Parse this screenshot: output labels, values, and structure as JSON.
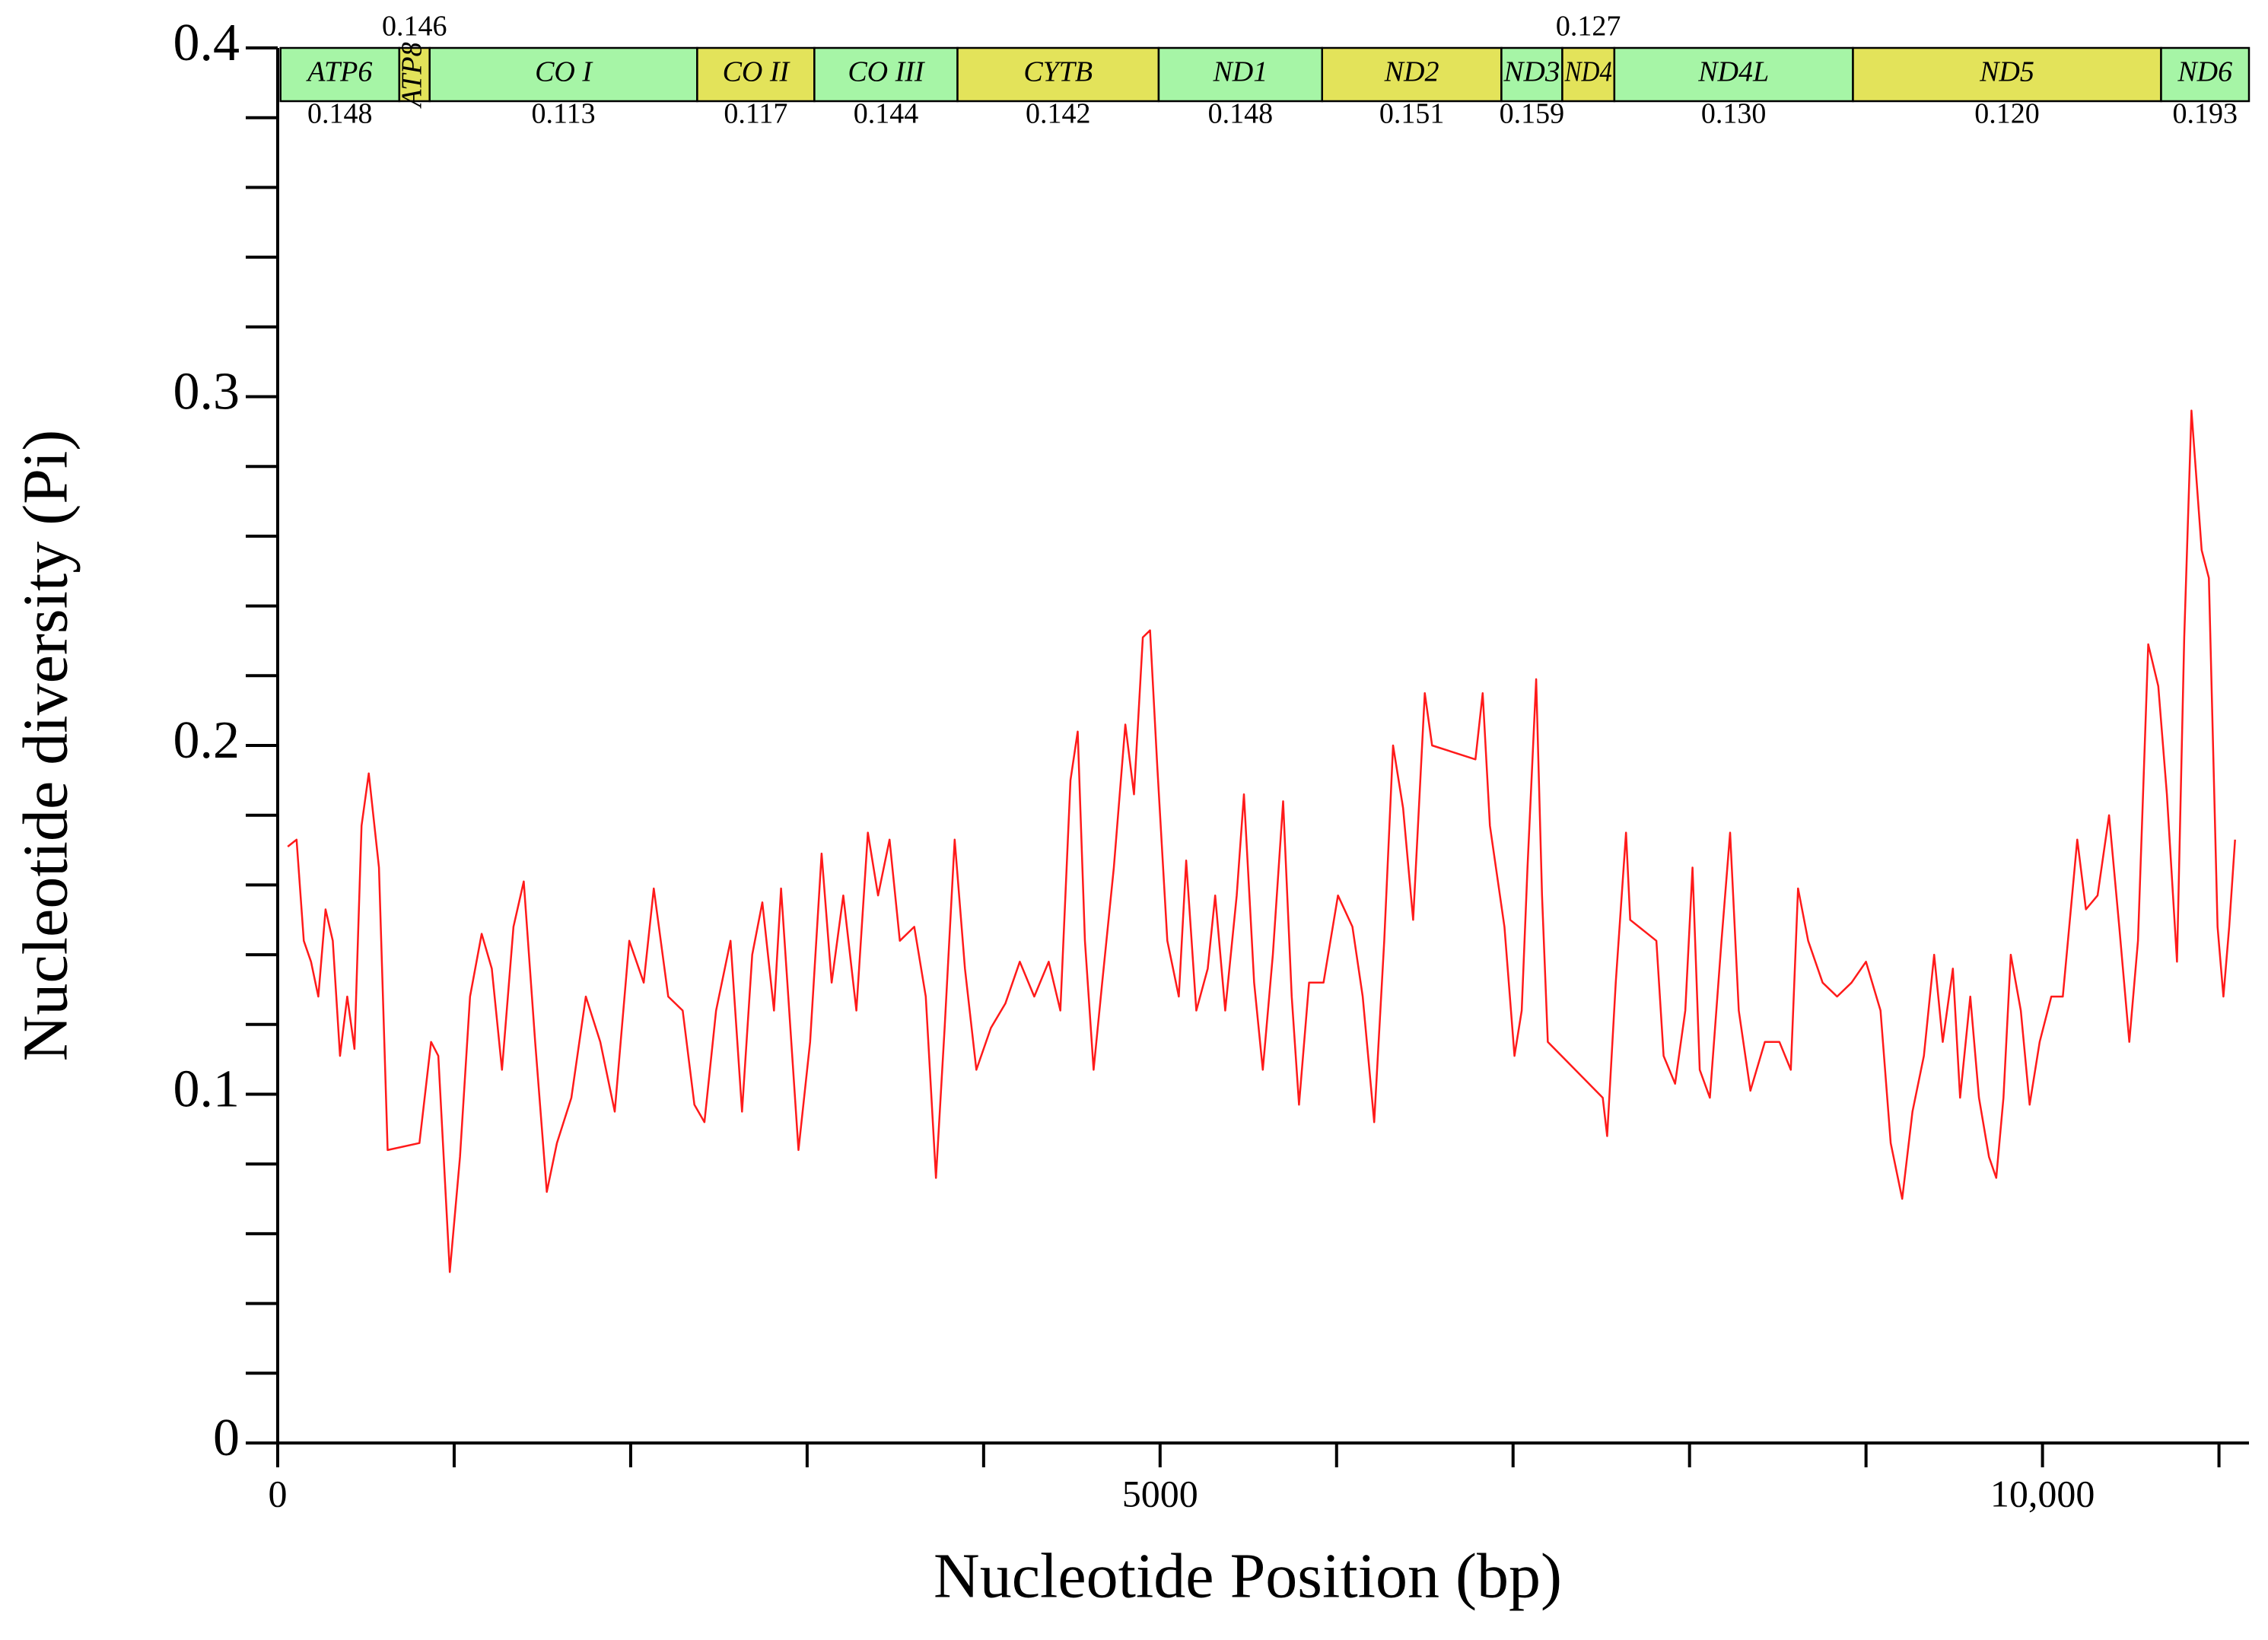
{
  "chart_data": {
    "type": "line",
    "xlabel": "Nucleotide Position (bp)",
    "ylabel": "Nucleotide diversity (Pi)",
    "color": "#ff1a1a",
    "xlim": [
      0,
      11170
    ],
    "ylim": [
      0,
      0.4
    ],
    "xticks": [
      0,
      5000,
      {
        "value": 10000,
        "label": "10,000"
      }
    ],
    "xticks_minor": [
      1000,
      2000,
      3000,
      4000,
      6000,
      7000,
      8000,
      9000,
      11000
    ],
    "yticks": [
      0,
      0.1,
      0.2,
      0.3,
      0.4
    ],
    "yticks_minor": [
      0.02,
      0.04,
      0.06,
      0.08,
      0.12,
      0.14,
      0.16,
      0.18,
      0.22,
      0.24,
      0.26,
      0.28,
      0.32,
      0.34,
      0.36,
      0.38
    ],
    "genes": {
      "names": [
        "ATP6",
        "ATP8",
        "CO I",
        "CO II",
        "CO III",
        "CYTB",
        "ND1",
        "ND2",
        "ND3",
        "ND4",
        "ND4L",
        "ND5",
        "ND6"
      ],
      "starts": [
        16,
        689,
        861,
        2377,
        3041,
        3852,
        4992,
        5918,
        6934,
        7279,
        7574,
        8926,
        10672
      ],
      "ends": [
        689,
        861,
        2377,
        3041,
        3852,
        4992,
        5918,
        6934,
        7279,
        7574,
        8926,
        10672,
        11170
      ],
      "colors": [
        "#a6f5a6",
        "#e3e35a",
        "#a6f5a6",
        "#e3e35a",
        "#a6f5a6",
        "#e3e35a",
        "#a6f5a6",
        "#e3e35a",
        "#a6f5a6",
        "#e3e35a",
        "#a6f5a6",
        "#e3e35a",
        "#a6f5a6"
      ],
      "values": [
        0.148,
        0.146,
        0.113,
        0.117,
        0.144,
        0.142,
        0.148,
        0.151,
        0.159,
        0.127,
        0.13,
        0.12,
        0.193
      ],
      "value_labels": [
        "0.148",
        "0.146",
        "0.113",
        "0.117",
        "0.144",
        "0.142",
        "0.148",
        "0.151",
        "0.159",
        "0.127",
        "0.130",
        "0.120",
        "0.193"
      ],
      "label_rows": [
        "below",
        "above",
        "below",
        "below",
        "below",
        "below",
        "below",
        "below",
        "below",
        "above",
        "below",
        "below",
        "below"
      ]
    },
    "x": [
      57,
      107,
      148,
      189,
      230,
      271,
      312,
      353,
      394,
      435,
      475,
      516,
      574,
      623,
      803,
      869,
      910,
      975,
      1033,
      1090,
      1156,
      1213,
      1271,
      1336,
      1394,
      1459,
      1525,
      1582,
      1664,
      1746,
      1828,
      1910,
      1992,
      2074,
      2131,
      2213,
      2295,
      2361,
      2418,
      2484,
      2566,
      2631,
      2689,
      2746,
      2812,
      2852,
      2893,
      2951,
      3017,
      3082,
      3139,
      3205,
      3279,
      3344,
      3402,
      3467,
      3525,
      3607,
      3672,
      3730,
      3779,
      3836,
      3894,
      3959,
      4041,
      4123,
      4205,
      4287,
      4369,
      4435,
      4492,
      4533,
      4574,
      4623,
      4672,
      4738,
      4803,
      4852,
      4902,
      4943,
      4984,
      5041,
      5106,
      5148,
      5205,
      5270,
      5312,
      5369,
      5434,
      5475,
      5533,
      5582,
      5639,
      5697,
      5746,
      5787,
      5844,
      5926,
      6008,
      6090,
      6148,
      6213,
      6270,
      6320,
      6377,
      6434,
      6500,
      6541,
      6787,
      6828,
      6869,
      6951,
      7008,
      7049,
      7082,
      7131,
      7164,
      7197,
      7508,
      7533,
      7582,
      7640,
      7664,
      7812,
      7853,
      7918,
      7976,
      8017,
      8058,
      8115,
      8181,
      8230,
      8279,
      8345,
      8427,
      8509,
      8574,
      8615,
      8672,
      8754,
      8836,
      8918,
      9000,
      9082,
      9140,
      9205,
      9263,
      9328,
      9386,
      9435,
      9492,
      9533,
      9591,
      9640,
      9697,
      9738,
      9779,
      9820,
      9877,
      9927,
      9984,
      10050,
      10115,
      10197,
      10246,
      10312,
      10377,
      10435,
      10492,
      10541,
      10599,
      10656,
      10705,
      10762,
      10803,
      10844,
      10902,
      10943,
      10992,
      11025,
      11058,
      11091
    ],
    "values": [
      0.171,
      0.173,
      0.144,
      0.138,
      0.128,
      0.153,
      0.144,
      0.111,
      0.128,
      0.113,
      0.177,
      0.192,
      0.165,
      0.084,
      0.086,
      0.115,
      0.111,
      0.049,
      0.082,
      0.128,
      0.146,
      0.136,
      0.107,
      0.148,
      0.161,
      0.115,
      0.072,
      0.086,
      0.099,
      0.128,
      0.115,
      0.095,
      0.144,
      0.132,
      0.159,
      0.128,
      0.124,
      0.097,
      0.092,
      0.124,
      0.144,
      0.095,
      0.14,
      0.155,
      0.124,
      0.159,
      0.128,
      0.084,
      0.115,
      0.169,
      0.132,
      0.157,
      0.124,
      0.175,
      0.157,
      0.173,
      0.144,
      0.148,
      0.128,
      0.076,
      0.119,
      0.173,
      0.136,
      0.107,
      0.119,
      0.126,
      0.138,
      0.128,
      0.138,
      0.124,
      0.19,
      0.204,
      0.144,
      0.107,
      0.132,
      0.165,
      0.206,
      0.186,
      0.231,
      0.233,
      0.194,
      0.144,
      0.128,
      0.167,
      0.124,
      0.136,
      0.157,
      0.124,
      0.157,
      0.186,
      0.132,
      0.107,
      0.14,
      0.184,
      0.128,
      0.097,
      0.132,
      0.132,
      0.157,
      0.148,
      0.128,
      0.092,
      0.144,
      0.2,
      0.182,
      0.15,
      0.215,
      0.2,
      0.196,
      0.215,
      0.177,
      0.148,
      0.111,
      0.124,
      0.165,
      0.219,
      0.157,
      0.115,
      0.099,
      0.088,
      0.132,
      0.175,
      0.15,
      0.144,
      0.111,
      0.103,
      0.124,
      0.165,
      0.107,
      0.099,
      0.144,
      0.175,
      0.124,
      0.101,
      0.115,
      0.115,
      0.107,
      0.159,
      0.144,
      0.132,
      0.128,
      0.132,
      0.138,
      0.124,
      0.086,
      0.07,
      0.095,
      0.111,
      0.14,
      0.115,
      0.136,
      0.099,
      0.128,
      0.099,
      0.082,
      0.076,
      0.099,
      0.14,
      0.124,
      0.097,
      0.115,
      0.128,
      0.128,
      0.173,
      0.153,
      0.157,
      0.18,
      0.148,
      0.115,
      0.144,
      0.229,
      0.217,
      0.186,
      0.138,
      0.231,
      0.296,
      0.256,
      0.248,
      0.148,
      0.128,
      0.148,
      0.173
    ]
  }
}
